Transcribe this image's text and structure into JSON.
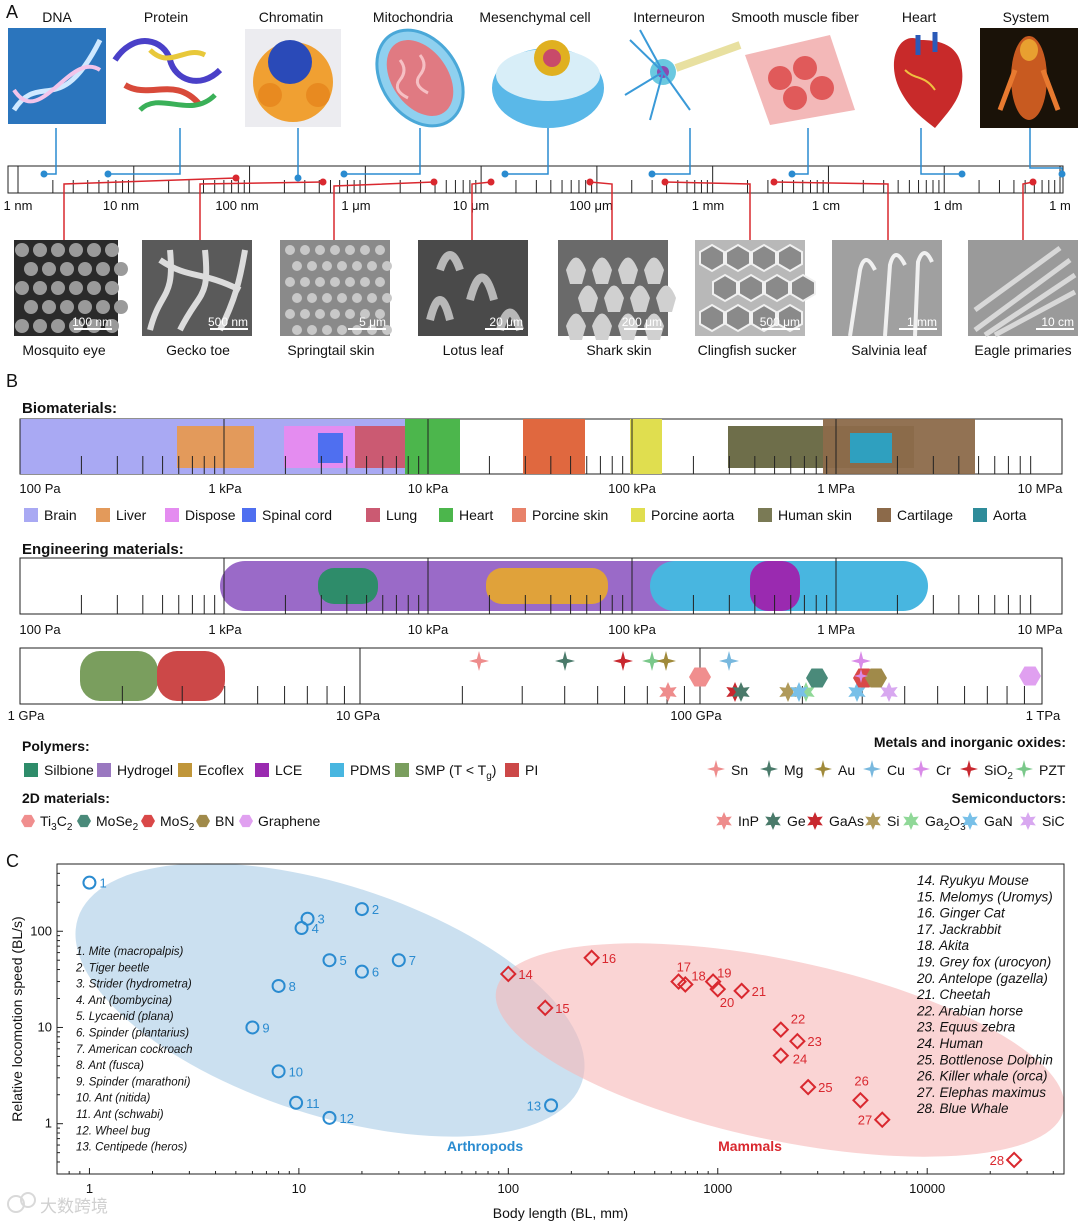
{
  "panelA": {
    "label": "A",
    "top_items": [
      "DNA",
      "Protein",
      "Chromatin",
      "Mitochondria",
      "Mesenchymal cell",
      "Interneuron",
      "Smooth muscle fiber",
      "Heart",
      "System"
    ],
    "scale_ticks": [
      "1 nm",
      "10 nm",
      "100 nm",
      "1 μm",
      "10 μm",
      "100 μm",
      "1 mm",
      "1 cm",
      "1 dm",
      "1 m"
    ],
    "bottom_items": [
      {
        "name": "Mosquito eye",
        "bar": "100 nm"
      },
      {
        "name": "Gecko toe",
        "bar": "500 nm"
      },
      {
        "name": "Springtail skin",
        "bar": "5 μm"
      },
      {
        "name": "Lotus leaf",
        "bar": "20 μm"
      },
      {
        "name": "Shark skin",
        "bar": "200 μm"
      },
      {
        "name": "Clingfish sucker",
        "bar": "500 μm"
      },
      {
        "name": "Salvinia leaf",
        "bar": "1 mm"
      },
      {
        "name": "Eagle primaries",
        "bar": "10 cm"
      }
    ],
    "blue": "#2a8bd0",
    "red": "#d9282f"
  },
  "panelB": {
    "label": "B",
    "bio_title": "Biomaterials:",
    "eng_title": "Engineering materials:",
    "axis1_ticks": [
      "100 Pa",
      "1 kPa",
      "10 kPa",
      "100 kPa",
      "1 MPa",
      "10 MPa"
    ],
    "axis3_ticks": [
      "1 GPa",
      "10 GPa",
      "100 GPa",
      "1 TPa"
    ],
    "bio_legend": [
      {
        "name": "Brain",
        "color": "#a9a9f3"
      },
      {
        "name": "Liver",
        "color": "#e39a5b"
      },
      {
        "name": "Dispose",
        "color": "#e48cf0"
      },
      {
        "name": "Spinal cord",
        "color": "#4f6ff0"
      },
      {
        "name": "Lung",
        "color": "#cb5a72"
      },
      {
        "name": "Heart",
        "color": "#4cb64c"
      },
      {
        "name": "Porcine skin",
        "color": "#e8826a"
      },
      {
        "name": "Porcine aorta",
        "color": "#e0de4f"
      },
      {
        "name": "Human skin",
        "color": "#7a7a55"
      },
      {
        "name": "Cartilage",
        "color": "#8c6a4a"
      },
      {
        "name": "Aorta",
        "color": "#2f8c9a"
      }
    ],
    "polymers_title": "Polymers:",
    "polymers": [
      {
        "name": "Silbione",
        "color": "#2e8c6a"
      },
      {
        "name": "Hydrogel",
        "color": "#9a78c0"
      },
      {
        "name": "Ecoflex",
        "color": "#c0963a"
      },
      {
        "name": "LCE",
        "color": "#9a2ab0"
      },
      {
        "name": "PDMS",
        "color": "#48b6e0"
      },
      {
        "name": "SMP (T < T",
        "sub": "g",
        "suffix": ")",
        "color": "#7a9e5e"
      },
      {
        "name": "PI",
        "color": "#cc4848"
      }
    ],
    "metals_title": "Metals and inorganic oxides:",
    "metals": [
      {
        "name": "Sn",
        "color": "#ee8c8c"
      },
      {
        "name": "Mg",
        "color": "#4a7a6a"
      },
      {
        "name": "Au",
        "color": "#a08a3a"
      },
      {
        "name": "Cu",
        "color": "#78b8de"
      },
      {
        "name": "Cr",
        "color": "#d98be8"
      },
      {
        "name": "SiO",
        "sub": "2",
        "color": "#c8282f"
      },
      {
        "name": "PZT",
        "color": "#7ac88a"
      }
    ],
    "twod_title": "2D materials:",
    "twod": [
      {
        "name": "Ti",
        "sub": "3",
        "mid": "C",
        "sub2": "2",
        "color": "#f08e8e"
      },
      {
        "name": "MoSe",
        "sub": "2",
        "color": "#4a8a7a"
      },
      {
        "name": "MoS",
        "sub": "2",
        "color": "#d94848"
      },
      {
        "name": "BN",
        "color": "#a08a4a"
      },
      {
        "name": "Graphene",
        "color": "#e0a0f0"
      }
    ],
    "semi_title": "Semiconductors:",
    "semi": [
      {
        "name": "InP",
        "color": "#ee8c8c"
      },
      {
        "name": "Ge",
        "color": "#4a7a6a"
      },
      {
        "name": "GaAs",
        "color": "#c8282f"
      },
      {
        "name": "Si",
        "color": "#b09a5a"
      },
      {
        "name": "Ga",
        "sub": "2",
        "mid": "O",
        "sub2": "3",
        "color": "#90d898"
      },
      {
        "name": "GaN",
        "color": "#78c0e8"
      },
      {
        "name": "SiC",
        "color": "#d8a8f0"
      }
    ]
  },
  "chart_data": {
    "type": "scatter",
    "panel_label": "C",
    "xlabel": "Body length (BL, mm)",
    "ylabel": "Relative locomotion speed (BL/s)",
    "x_scale": "log",
    "y_scale": "log",
    "xlim": [
      0.7,
      45000
    ],
    "ylim": [
      0.3,
      500
    ],
    "x_ticks": [
      "1",
      "10",
      "100",
      "1000",
      "10000"
    ],
    "y_ticks": [
      "1",
      "10",
      "100"
    ],
    "series": [
      {
        "name": "Arthropods",
        "color": "#2a8bd0",
        "marker": "circle",
        "points": [
          {
            "id": "1",
            "x": 1.0,
            "y": 320
          },
          {
            "id": "2",
            "x": 20,
            "y": 170
          },
          {
            "id": "3",
            "x": 11,
            "y": 135
          },
          {
            "id": "4",
            "x": 10.3,
            "y": 108
          },
          {
            "id": "5",
            "x": 14,
            "y": 50
          },
          {
            "id": "6",
            "x": 20,
            "y": 38
          },
          {
            "id": "7",
            "x": 30,
            "y": 50
          },
          {
            "id": "8",
            "x": 8,
            "y": 27
          },
          {
            "id": "9",
            "x": 6,
            "y": 10
          },
          {
            "id": "10",
            "x": 8,
            "y": 3.5
          },
          {
            "id": "11",
            "x": 9.7,
            "y": 1.65
          },
          {
            "id": "12",
            "x": 14,
            "y": 1.15
          },
          {
            "id": "13",
            "x": 160,
            "y": 1.55
          }
        ],
        "legend": [
          "Mite (macropalpis)",
          "Tiger beetle",
          "Strider (hydrometra)",
          "Ant (bombycina)",
          "Lycaenid (plana)",
          "Spinder (plantarius)",
          "American cockroach",
          "Ant (fusca)",
          "Spinder (marathoni)",
          "Ant (nitida)",
          "Ant (schwabi)",
          "Wheel bug",
          "Centipede (heros)"
        ]
      },
      {
        "name": "Mammals",
        "color": "#d9282f",
        "marker": "diamond",
        "points": [
          {
            "id": "14",
            "x": 100,
            "y": 36
          },
          {
            "id": "15",
            "x": 150,
            "y": 16
          },
          {
            "id": "16",
            "x": 250,
            "y": 53
          },
          {
            "id": "17",
            "x": 650,
            "y": 30
          },
          {
            "id": "18",
            "x": 700,
            "y": 28
          },
          {
            "id": "19",
            "x": 950,
            "y": 30
          },
          {
            "id": "20",
            "x": 1000,
            "y": 25
          },
          {
            "id": "21",
            "x": 1300,
            "y": 24
          },
          {
            "id": "22",
            "x": 2000,
            "y": 9.5
          },
          {
            "id": "23",
            "x": 2400,
            "y": 7.2
          },
          {
            "id": "24",
            "x": 2000,
            "y": 5.1
          },
          {
            "id": "25",
            "x": 2700,
            "y": 2.4
          },
          {
            "id": "26",
            "x": 4800,
            "y": 1.75
          },
          {
            "id": "27",
            "x": 6100,
            "y": 1.1
          },
          {
            "id": "28",
            "x": 26000,
            "y": 0.42
          }
        ],
        "legend": [
          "Ryukyu Mouse",
          "Melomys (Uromys)",
          "Ginger Cat",
          "Jackrabbit",
          "Akita",
          "Grey fox (urocyon)",
          "Antelope (gazella)",
          "Cheetah",
          "Arabian horse",
          "Equus zebra",
          "Human",
          "Bottlenose Dolphin",
          "Killer whale (orca)",
          "Elephas maximus",
          "Blue Whale"
        ]
      }
    ]
  },
  "watermark": "大数跨境"
}
